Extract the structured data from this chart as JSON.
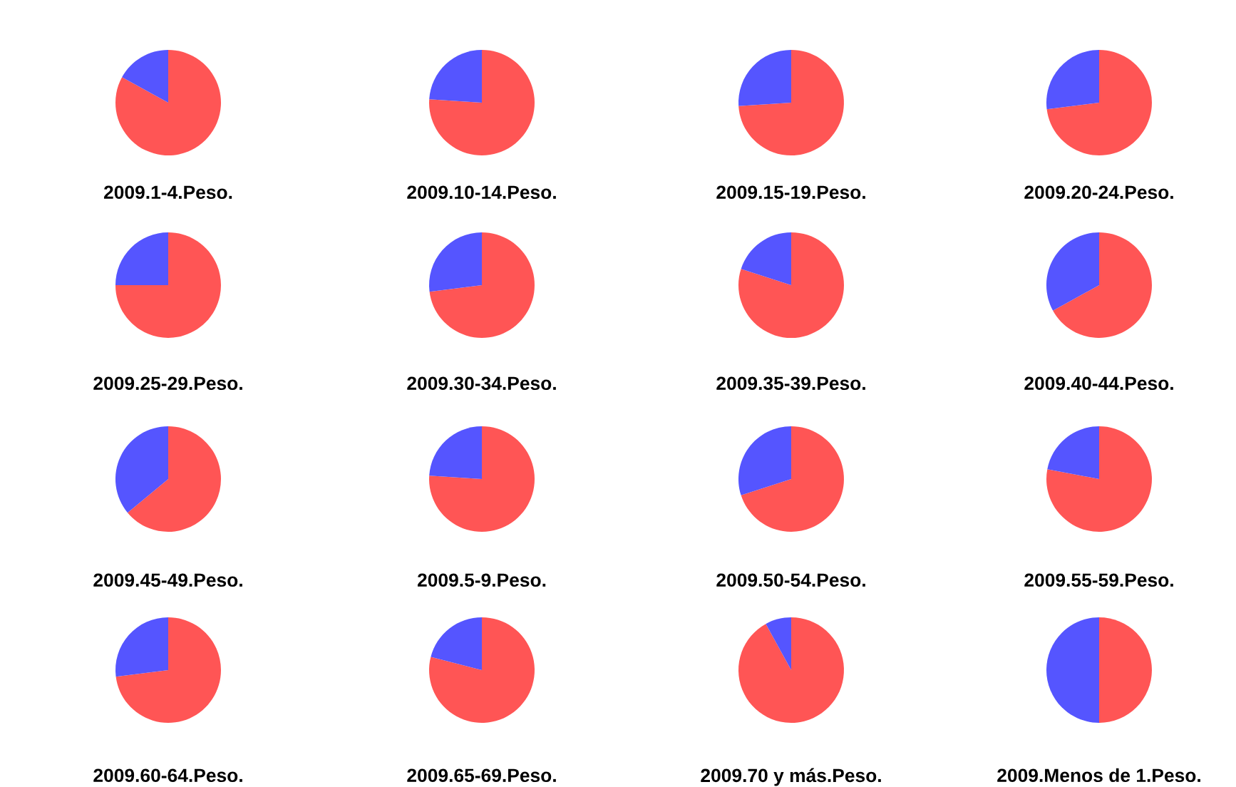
{
  "chart_data": [
    {
      "type": "pie",
      "title": "2009.1-4.Peso.",
      "categories": [
        null,
        null
      ],
      "values": [
        83,
        17
      ],
      "colors": [
        "#ff5555",
        "#5555ff"
      ]
    },
    {
      "type": "pie",
      "title": "2009.10-14.Peso.",
      "categories": [
        null,
        null
      ],
      "values": [
        76,
        24
      ],
      "colors": [
        "#ff5555",
        "#5555ff"
      ]
    },
    {
      "type": "pie",
      "title": "2009.15-19.Peso.",
      "categories": [
        null,
        null
      ],
      "values": [
        74,
        26
      ],
      "colors": [
        "#ff5555",
        "#5555ff"
      ]
    },
    {
      "type": "pie",
      "title": "2009.20-24.Peso.",
      "categories": [
        null,
        null
      ],
      "values": [
        73,
        27
      ],
      "colors": [
        "#ff5555",
        "#5555ff"
      ]
    },
    {
      "type": "pie",
      "title": "2009.25-29.Peso.",
      "categories": [
        null,
        null
      ],
      "values": [
        75,
        25
      ],
      "colors": [
        "#ff5555",
        "#5555ff"
      ]
    },
    {
      "type": "pie",
      "title": "2009.30-34.Peso.",
      "categories": [
        null,
        null
      ],
      "values": [
        73,
        27
      ],
      "colors": [
        "#ff5555",
        "#5555ff"
      ]
    },
    {
      "type": "pie",
      "title": "2009.35-39.Peso.",
      "categories": [
        null,
        null
      ],
      "values": [
        80,
        20
      ],
      "colors": [
        "#ff5555",
        "#5555ff"
      ]
    },
    {
      "type": "pie",
      "title": "2009.40-44.Peso.",
      "categories": [
        null,
        null
      ],
      "values": [
        67,
        33
      ],
      "colors": [
        "#ff5555",
        "#5555ff"
      ]
    },
    {
      "type": "pie",
      "title": "2009.45-49.Peso.",
      "categories": [
        null,
        null
      ],
      "values": [
        64,
        36
      ],
      "colors": [
        "#ff5555",
        "#5555ff"
      ]
    },
    {
      "type": "pie",
      "title": "2009.5-9.Peso.",
      "categories": [
        null,
        null
      ],
      "values": [
        76,
        24
      ],
      "colors": [
        "#ff5555",
        "#5555ff"
      ]
    },
    {
      "type": "pie",
      "title": "2009.50-54.Peso.",
      "categories": [
        null,
        null
      ],
      "values": [
        70,
        30
      ],
      "colors": [
        "#ff5555",
        "#5555ff"
      ]
    },
    {
      "type": "pie",
      "title": "2009.55-59.Peso.",
      "categories": [
        null,
        null
      ],
      "values": [
        78,
        22
      ],
      "colors": [
        "#ff5555",
        "#5555ff"
      ]
    },
    {
      "type": "pie",
      "title": "2009.60-64.Peso.",
      "categories": [
        null,
        null
      ],
      "values": [
        73,
        27
      ],
      "colors": [
        "#ff5555",
        "#5555ff"
      ]
    },
    {
      "type": "pie",
      "title": "2009.65-69.Peso.",
      "categories": [
        null,
        null
      ],
      "values": [
        79,
        21
      ],
      "colors": [
        "#ff5555",
        "#5555ff"
      ]
    },
    {
      "type": "pie",
      "title": "2009.70 y más.Peso.",
      "categories": [
        null,
        null
      ],
      "values": [
        92,
        8
      ],
      "colors": [
        "#ff5555",
        "#5555ff"
      ]
    },
    {
      "type": "pie",
      "title": "2009.Menos de 1.Peso.",
      "categories": [
        null,
        null
      ],
      "values": [
        50,
        50
      ],
      "colors": [
        "#ff5555",
        "#5555ff"
      ]
    }
  ]
}
